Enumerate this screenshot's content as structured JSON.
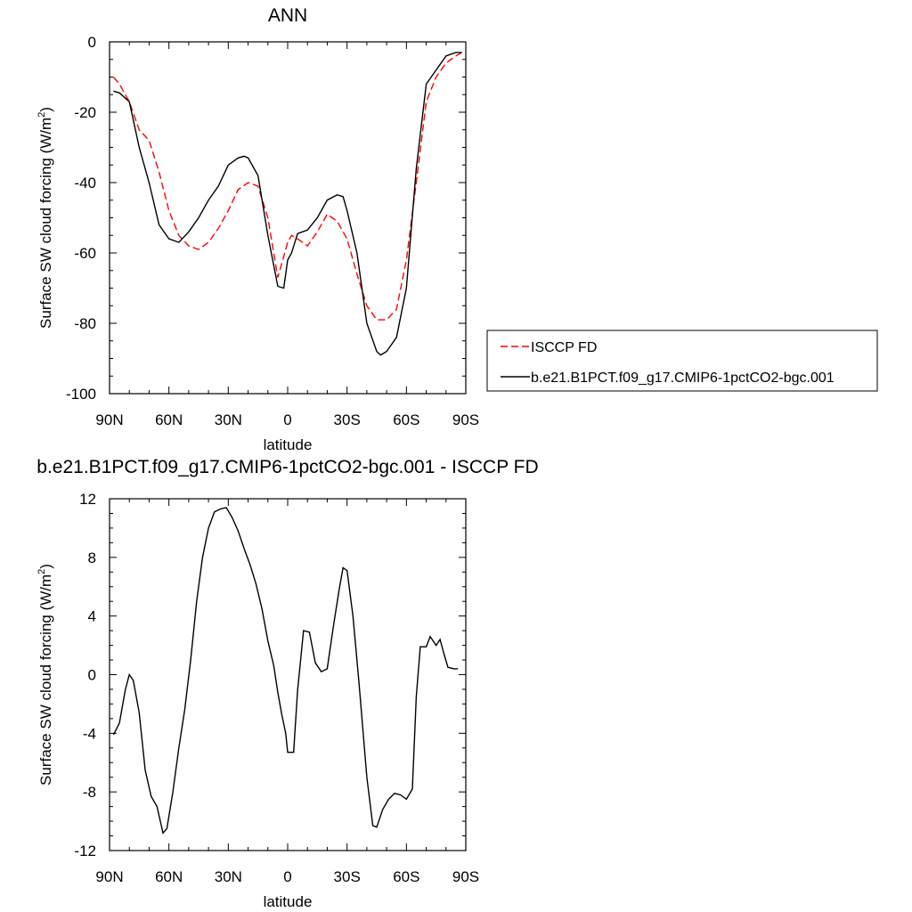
{
  "chart_data": [
    {
      "type": "line",
      "title": "ANN",
      "xlabel": "latitude",
      "ylabel": "Surface SW cloud forcing (W/m",
      "ylabel_sup": "2",
      "ylabel_end": ")",
      "xlim": [
        90,
        -90
      ],
      "ylim": [
        -100,
        0
      ],
      "x_ticks": [
        90,
        60,
        30,
        0,
        -30,
        -60,
        -90
      ],
      "x_tick_labels": [
        "90N",
        "60N",
        "30N",
        "0",
        "30S",
        "60S",
        "90S"
      ],
      "y_ticks": [
        0,
        -20,
        -40,
        -60,
        -80,
        -100
      ],
      "y_tick_labels": [
        "0",
        "-20",
        "-40",
        "-60",
        "-80",
        "-100"
      ],
      "legend": "right",
      "series": [
        {
          "name": "ISCCP FD",
          "color": "#ff0000",
          "dash": "dashed",
          "x": [
            88,
            85,
            80,
            75,
            70,
            65,
            60,
            55,
            50,
            45,
            40,
            35,
            30,
            25,
            20,
            15,
            10,
            5,
            2,
            0,
            -2,
            -5,
            -10,
            -15,
            -20,
            -25,
            -30,
            -35,
            -40,
            -45,
            -50,
            -55,
            -60,
            -65,
            -70,
            -75,
            -80,
            -85,
            -88
          ],
          "y": [
            -10,
            -12,
            -17,
            -25,
            -28,
            -37,
            -48,
            -55,
            -58,
            -59,
            -57,
            -53,
            -48,
            -42,
            -40,
            -41,
            -50,
            -67,
            -61,
            -57,
            -55,
            -56,
            -58,
            -54,
            -49,
            -51,
            -56,
            -66,
            -75,
            -79,
            -79,
            -76,
            -62,
            -40,
            -17,
            -10,
            -6,
            -4,
            -3
          ]
        },
        {
          "name": "b.e21.B1PCT.f09_g17.CMIP6-1pctCO2-bgc.001",
          "color": "#000000",
          "dash": "solid",
          "x": [
            88,
            85,
            80,
            75,
            70,
            65,
            60,
            55,
            50,
            45,
            40,
            35,
            30,
            25,
            22,
            20,
            15,
            10,
            5,
            2,
            0,
            -2,
            -5,
            -10,
            -15,
            -20,
            -25,
            -28,
            -30,
            -35,
            -40,
            -45,
            -47,
            -50,
            -55,
            -60,
            -65,
            -70,
            -75,
            -80,
            -85,
            -88
          ],
          "y": [
            -14,
            -14.5,
            -17,
            -30,
            -40,
            -52,
            -56,
            -57,
            -54,
            -50,
            -45,
            -41,
            -35,
            -33,
            -32.5,
            -33,
            -38,
            -55,
            -69.5,
            -70,
            -62,
            -60,
            -54.5,
            -53.5,
            -50,
            -45,
            -43.5,
            -44,
            -48,
            -60,
            -80,
            -88,
            -89,
            -88,
            -84,
            -70,
            -36,
            -12,
            -8,
            -4,
            -3,
            -3
          ]
        }
      ]
    },
    {
      "type": "line",
      "title": "b.e21.B1PCT.f09_g17.CMIP6-1pctCO2-bgc.001 - ISCCP FD",
      "xlabel": "latitude",
      "ylabel": "Surface SW cloud forcing (W/m",
      "ylabel_sup": "2",
      "ylabel_end": ")",
      "xlim": [
        90,
        -90
      ],
      "ylim": [
        -12,
        12
      ],
      "x_ticks": [
        90,
        60,
        30,
        0,
        -30,
        -60,
        -90
      ],
      "x_tick_labels": [
        "90N",
        "60N",
        "30N",
        "0",
        "30S",
        "60S",
        "90S"
      ],
      "y_ticks": [
        12,
        8,
        4,
        0,
        -4,
        -8,
        -12
      ],
      "y_tick_labels": [
        "12",
        "8",
        "4",
        "0",
        "-4",
        "-8",
        "-12"
      ],
      "series": [
        {
          "color": "#000000",
          "dash": "solid",
          "x": [
            88,
            85,
            82,
            80,
            78,
            75,
            72,
            69,
            66,
            63,
            61,
            58,
            55,
            52,
            49,
            46,
            43,
            40,
            37,
            34,
            31,
            28,
            25,
            22,
            19,
            16,
            13,
            10,
            7,
            5,
            3,
            1,
            0,
            -1,
            -3,
            -5,
            -8,
            -11,
            -14,
            -17,
            -20,
            -23,
            -26,
            -28,
            -30,
            -33,
            -36,
            -40,
            -43,
            -45,
            -48,
            -51,
            -54,
            -57,
            -60,
            -63,
            -65,
            -67,
            -70,
            -72,
            -75,
            -77,
            -79,
            -81,
            -84,
            -86
          ],
          "y": [
            -4.1,
            -3.3,
            -1,
            0,
            -0.4,
            -2.6,
            -6.5,
            -8.3,
            -9,
            -10.8,
            -10.5,
            -8,
            -5,
            -2.4,
            1,
            5,
            8,
            10,
            11.1,
            11.3,
            11.4,
            10.7,
            9.8,
            8.6,
            7.5,
            6.2,
            4.5,
            2.3,
            0.6,
            -1.2,
            -2.7,
            -4,
            -5.3,
            -5.3,
            -5.3,
            -1.1,
            3,
            2.9,
            0.8,
            0.2,
            0.4,
            3.2,
            5.8,
            7.3,
            7.1,
            4,
            -0.5,
            -7,
            -10.3,
            -10.4,
            -9.2,
            -8.5,
            -8.1,
            -8.2,
            -8.5,
            -7.8,
            -1.5,
            1.9,
            1.9,
            2.6,
            2,
            2.4,
            1.4,
            0.5,
            0.4,
            0.4
          ]
        }
      ]
    }
  ]
}
